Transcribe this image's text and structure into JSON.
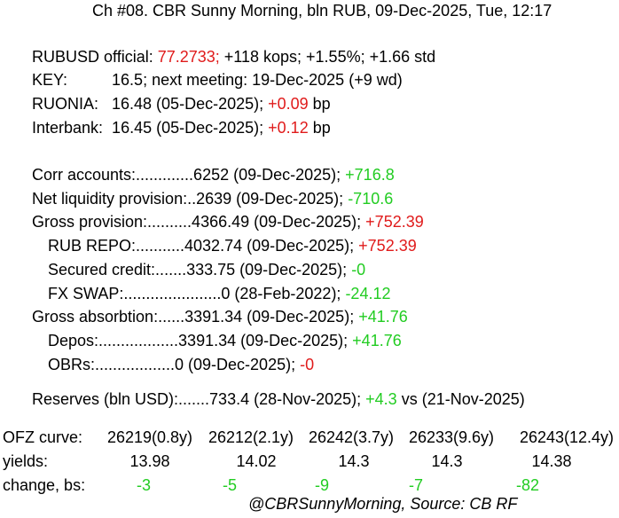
{
  "header": {
    "title": "Ch #08. CBR Sunny Morning, bln RUB, 09-Dec-2025, Tue, 12:17"
  },
  "colors": {
    "negative": "#e01b1b",
    "positive": "#22cc22",
    "text": "#000000",
    "background": "#ffffff"
  },
  "rates": {
    "rubusd": {
      "label": "RUBUSD official: ",
      "value": "77.2733;",
      "rest": " +118 kops; +1.55%; +1.66 std"
    },
    "key": {
      "text": "KEY:          16.5; next meeting: 19-Dec-2025 (+9 wd)"
    },
    "ruonia": {
      "label": "RUONIA:   16.48 (05-Dec-2025); ",
      "change": "+0.09",
      "unit": " bp"
    },
    "interbank": {
      "label": "Interbank:  16.45 (05-Dec-2025); ",
      "change": "+0.12",
      "unit": " bp"
    }
  },
  "liquidity": {
    "corr_accounts": {
      "label": "Corr accounts:.............6252 (09-Dec-2025); ",
      "change": "+716.8"
    },
    "net_liquidity": {
      "label": "Net liquidity provision:..2639 (09-Dec-2025); ",
      "change": "-710.6"
    },
    "gross_provision": {
      "label": "Gross provision:..........4366.49 (09-Dec-2025); ",
      "change": "+752.39"
    },
    "rub_repo": {
      "label": "RUB REPO:...........4032.74 (09-Dec-2025); ",
      "change": "+752.39"
    },
    "secured_credit": {
      "label": "Secured credit:.......333.75 (09-Dec-2025); ",
      "change": "-0"
    },
    "fx_swap": {
      "label": "FX SWAP:......................0 (28-Feb-2022); ",
      "change": "-24.12"
    },
    "gross_absorption": {
      "label": "Gross absorbtion:......3391.34 (09-Dec-2025); ",
      "change": "+41.76"
    },
    "depos": {
      "label": "Depos:..................3391.34 (09-Dec-2025); ",
      "change": "+41.76"
    },
    "obrs": {
      "label": "OBRs:..................0 (09-Dec-2025); ",
      "change": "-0"
    }
  },
  "reserves": {
    "label": "Reserves (bln USD):.......733.4 (28-Nov-2025); ",
    "change": "+4.3",
    "suffix": " vs (21-Nov-2025)"
  },
  "ofz": {
    "curve_label": "OFZ curve:",
    "yields_label": "yields:",
    "change_label": "change, bs:",
    "bonds": [
      {
        "name": "26219(0.8y)",
        "yield": "13.98",
        "change": "-3"
      },
      {
        "name": "26212(2.1y)",
        "yield": "14.02",
        "change": "-5"
      },
      {
        "name": "26242(3.7y)",
        "yield": "14.3",
        "change": "-9"
      },
      {
        "name": "26233(9.6y)",
        "yield": "14.3",
        "change": "-7"
      },
      {
        "name": "26243(12.4y)",
        "yield": "14.38",
        "change": "-82"
      }
    ]
  },
  "footer": {
    "source": "@CBRSunnyMorning, Source: CB RF"
  }
}
